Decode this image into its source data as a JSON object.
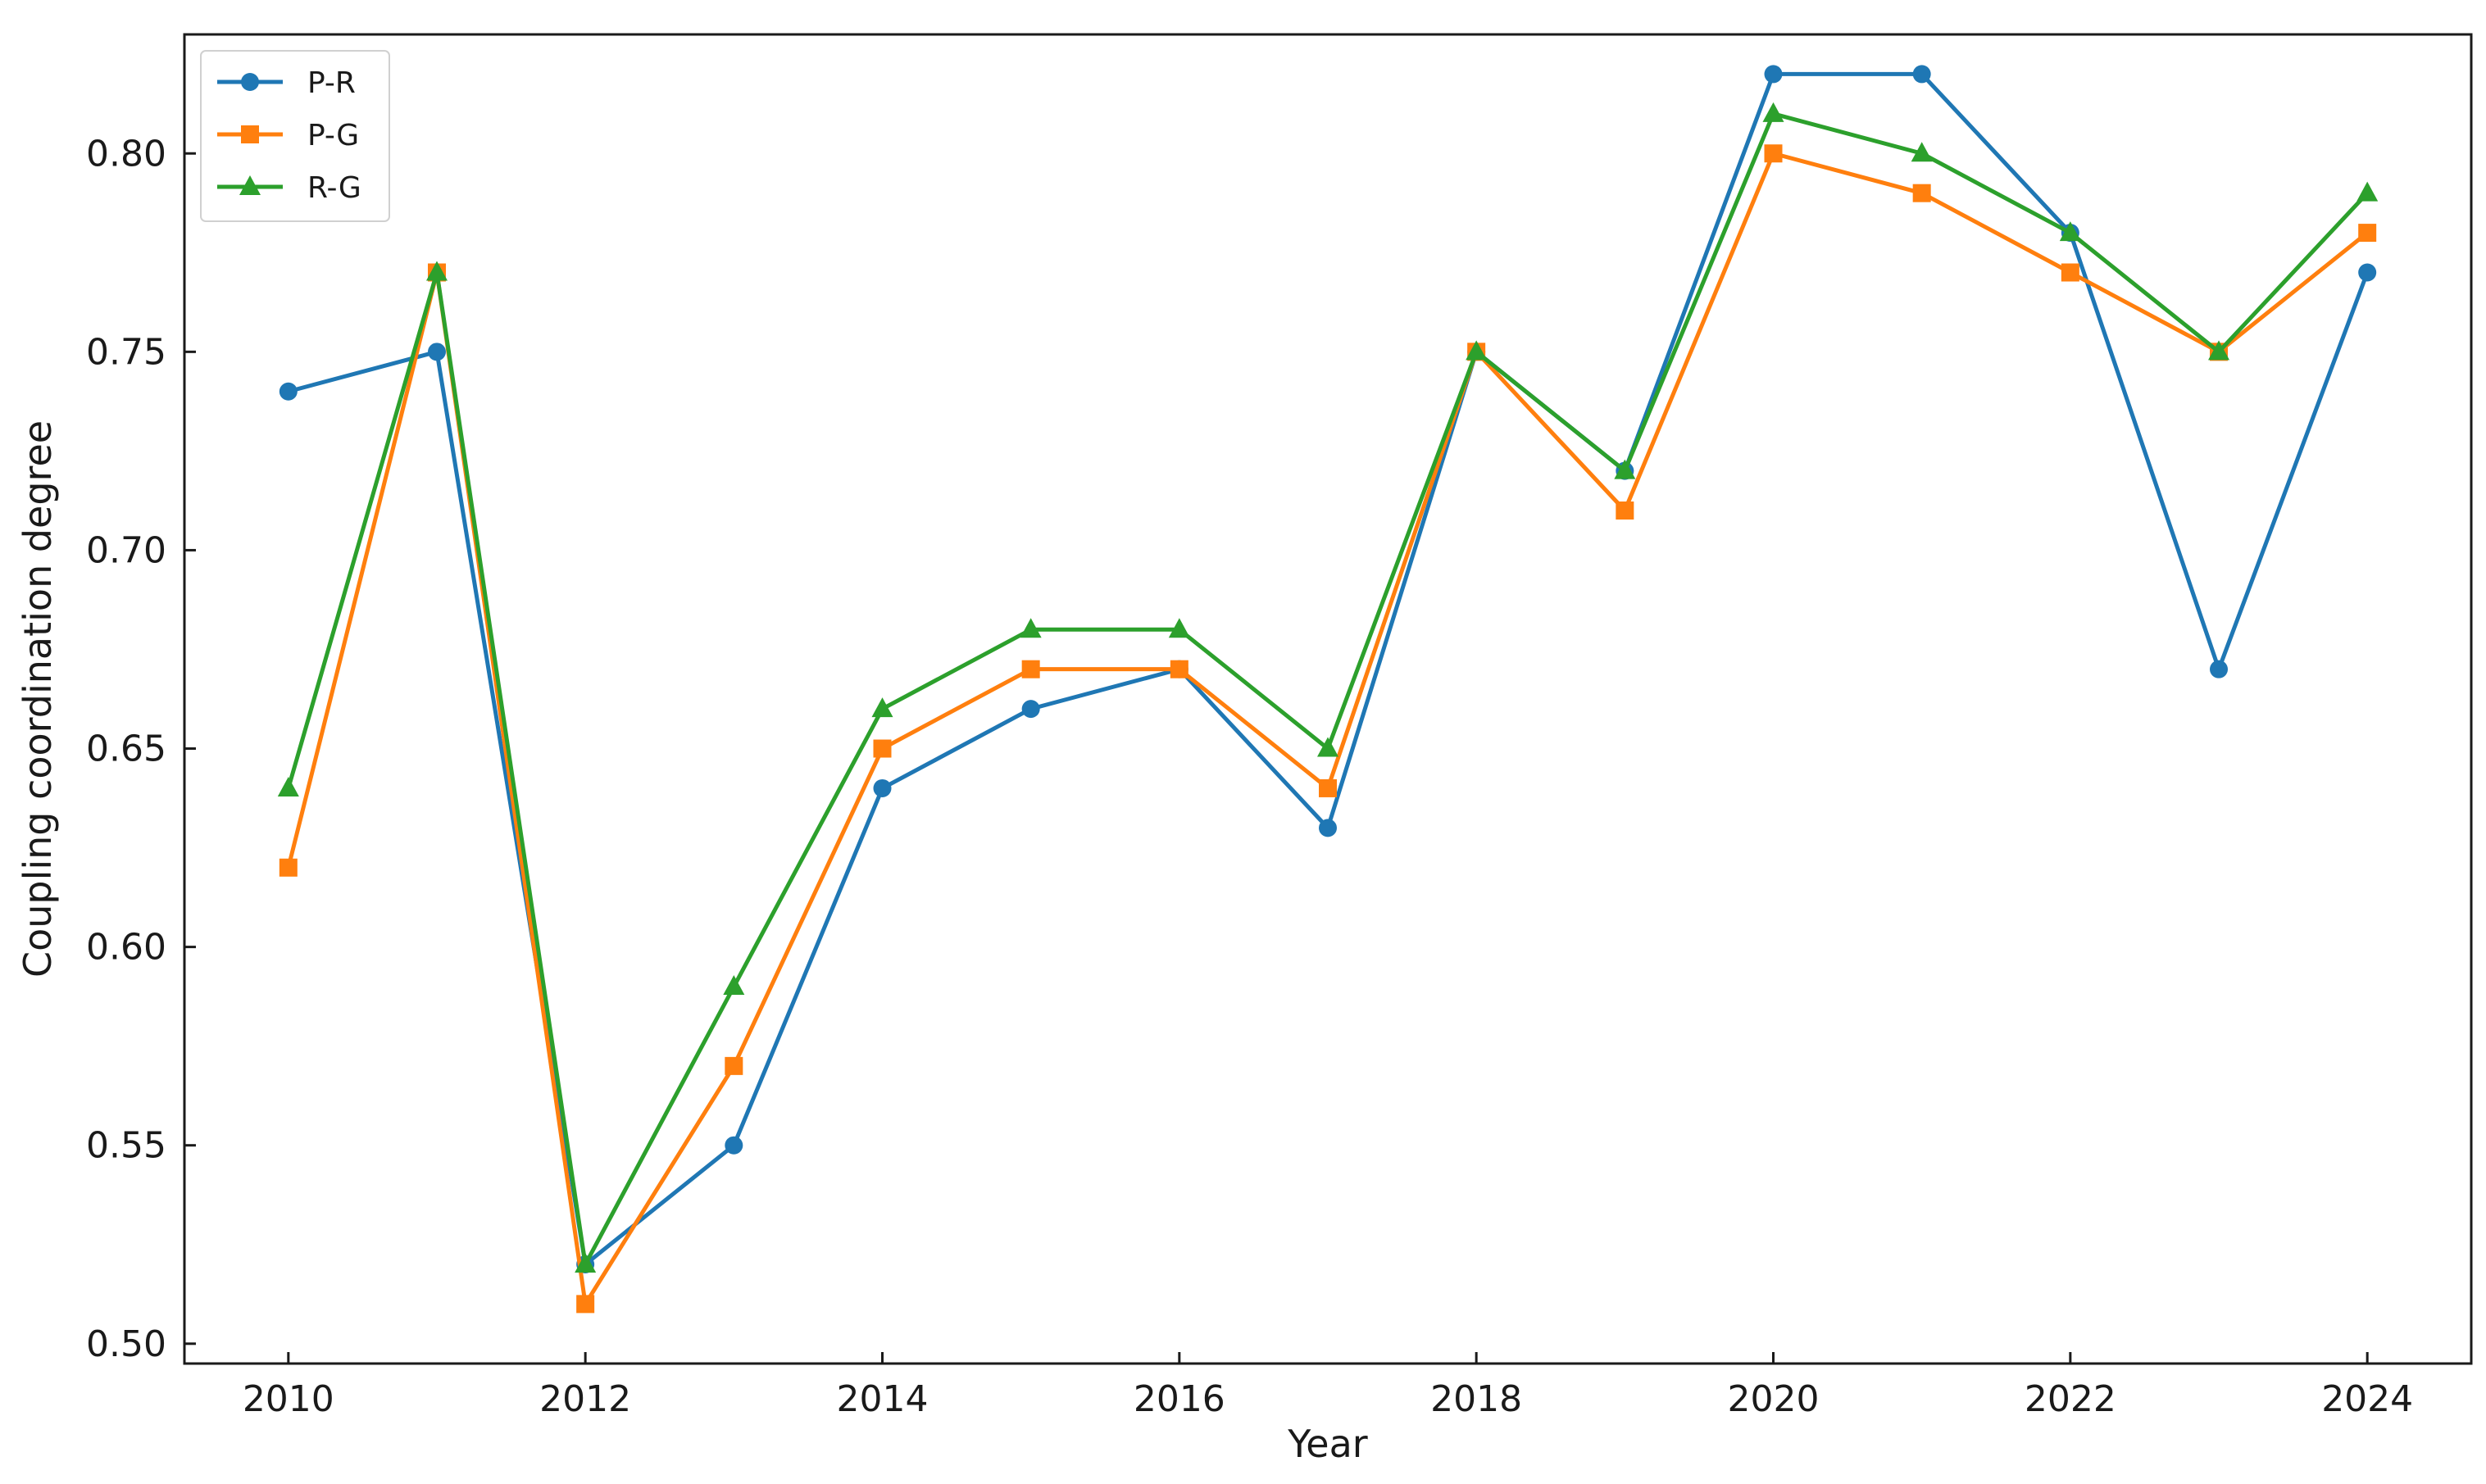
{
  "chart_data": {
    "type": "line",
    "xlabel": "Year",
    "ylabel": "Coupling coordination degree",
    "x": [
      2010,
      2011,
      2012,
      2013,
      2014,
      2015,
      2016,
      2017,
      2018,
      2019,
      2020,
      2021,
      2022,
      2023,
      2024
    ],
    "xlim": [
      2009.3,
      2024.7
    ],
    "ylim": [
      0.495,
      0.83
    ],
    "xticks": [
      2010,
      2012,
      2014,
      2016,
      2018,
      2020,
      2022,
      2024
    ],
    "xtick_labels": [
      "2010",
      "2012",
      "2014",
      "2016",
      "2018",
      "2020",
      "2022",
      "2024"
    ],
    "yticks": [
      0.5,
      0.55,
      0.6,
      0.65,
      0.7,
      0.75,
      0.8
    ],
    "ytick_labels": [
      "0.50",
      "0.55",
      "0.60",
      "0.65",
      "0.70",
      "0.75",
      "0.80"
    ],
    "grid": false,
    "legend_position": "top-left",
    "series": [
      {
        "name": "P-R",
        "color": "#1f77b4",
        "marker": "circle",
        "values": [
          0.74,
          0.75,
          0.52,
          0.55,
          0.64,
          0.66,
          0.67,
          0.63,
          0.75,
          0.72,
          0.82,
          0.82,
          0.78,
          0.67,
          0.77
        ]
      },
      {
        "name": "P-G",
        "color": "#ff7f0e",
        "marker": "square",
        "values": [
          0.62,
          0.77,
          0.51,
          0.57,
          0.65,
          0.67,
          0.67,
          0.64,
          0.75,
          0.71,
          0.8,
          0.79,
          0.77,
          0.75,
          0.78
        ]
      },
      {
        "name": "R-G",
        "color": "#2ca02c",
        "marker": "triangle",
        "values": [
          0.64,
          0.77,
          0.52,
          0.59,
          0.66,
          0.68,
          0.68,
          0.65,
          0.75,
          0.72,
          0.81,
          0.8,
          0.78,
          0.75,
          0.79
        ]
      }
    ]
  }
}
